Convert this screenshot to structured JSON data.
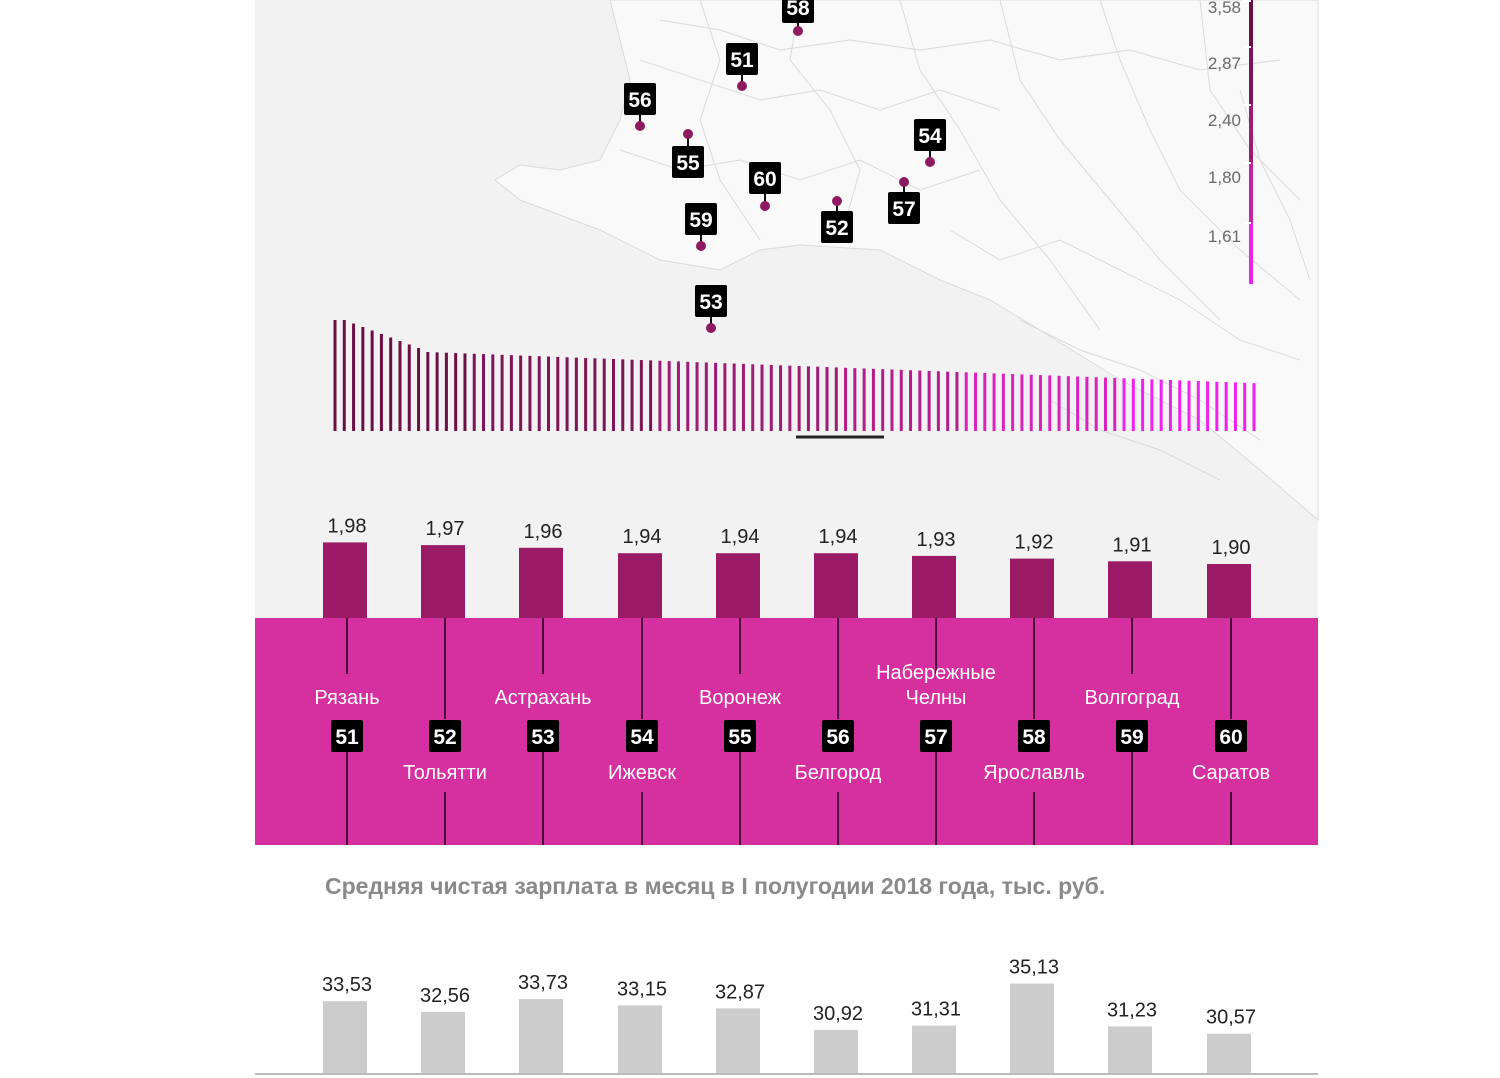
{
  "colors": {
    "map_bg": "#f2f2f2",
    "map_lines": "#dadada",
    "dark_bar": "#9b1b66",
    "pink_band": "#d62f9f",
    "badge": "#000000",
    "salary_bar": "#cccccc",
    "title_gray": "#8a8a8a"
  },
  "legend": {
    "ticks": [
      "3,58",
      "2,87",
      "2,40",
      "1,80",
      "1,61"
    ],
    "colors": [
      "#6b0f45",
      "#7d1557",
      "#9d1d74",
      "#c522a6",
      "#ee22ee"
    ]
  },
  "map_markers": [
    {
      "label": "58"
    },
    {
      "label": "51"
    },
    {
      "label": "56"
    },
    {
      "label": "55"
    },
    {
      "label": "54"
    },
    {
      "label": "60"
    },
    {
      "label": "57"
    },
    {
      "label": "52"
    },
    {
      "label": "59"
    },
    {
      "label": "53"
    }
  ],
  "chart_data": [
    {
      "type": "bar",
      "categories": [
        "Рязань",
        "Тольятти",
        "Астрахань",
        "Ижевск",
        "Воронеж",
        "Белгород",
        "Набережные Челны",
        "Ярославль",
        "Волгоград",
        "Саратов"
      ],
      "ranks": [
        "51",
        "52",
        "53",
        "54",
        "55",
        "56",
        "57",
        "58",
        "59",
        "60"
      ],
      "values": [
        1.98,
        1.97,
        1.96,
        1.94,
        1.94,
        1.94,
        1.93,
        1.92,
        1.91,
        1.9
      ],
      "value_labels": [
        "1,98",
        "1,97",
        "1,96",
        "1,94",
        "1,94",
        "1,94",
        "1,93",
        "1,92",
        "1,91",
        "1,90"
      ],
      "ylim": [
        0,
        2.4
      ]
    },
    {
      "type": "bar",
      "title": "Средняя чистая зарплата в месяц в I полугодии 2018 года, тыс. руб.",
      "categories": [
        "Рязань",
        "Тольятти",
        "Астрахань",
        "Ижевск",
        "Воронеж",
        "Белгород",
        "Набережные Челны",
        "Ярославль",
        "Волгоград",
        "Саратов"
      ],
      "values": [
        33.53,
        32.56,
        33.73,
        33.15,
        32.87,
        30.92,
        31.31,
        35.13,
        31.23,
        30.57
      ],
      "value_labels": [
        "33,53",
        "32,56",
        "33,73",
        "33,15",
        "32,87",
        "30,92",
        "31,31",
        "35,13",
        "31,23",
        "30,57"
      ]
    }
  ]
}
